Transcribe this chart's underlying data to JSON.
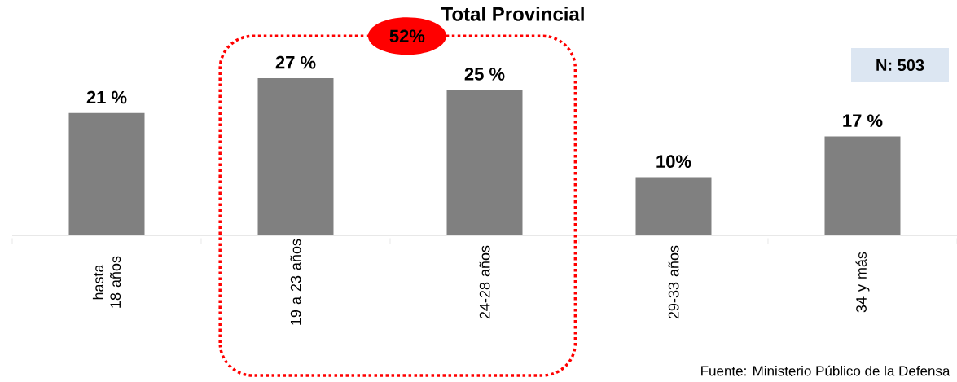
{
  "chart_data": {
    "type": "bar",
    "title": "Total Provincial",
    "categories": [
      "hasta 18 años",
      "19 a 23 años",
      "24-28 años",
      "29-33 años",
      "34 y más"
    ],
    "values": [
      21,
      27,
      25,
      10,
      17
    ],
    "color": "#808080",
    "value_labels": [
      "21 %",
      "27 %",
      "25 %",
      "10%",
      "17 %"
    ],
    "tick_labels": "x",
    "annotations": [
      "52%",
      "N: 503",
      "Fuente: Ministerio Público de la Defensa"
    ]
  }
}
